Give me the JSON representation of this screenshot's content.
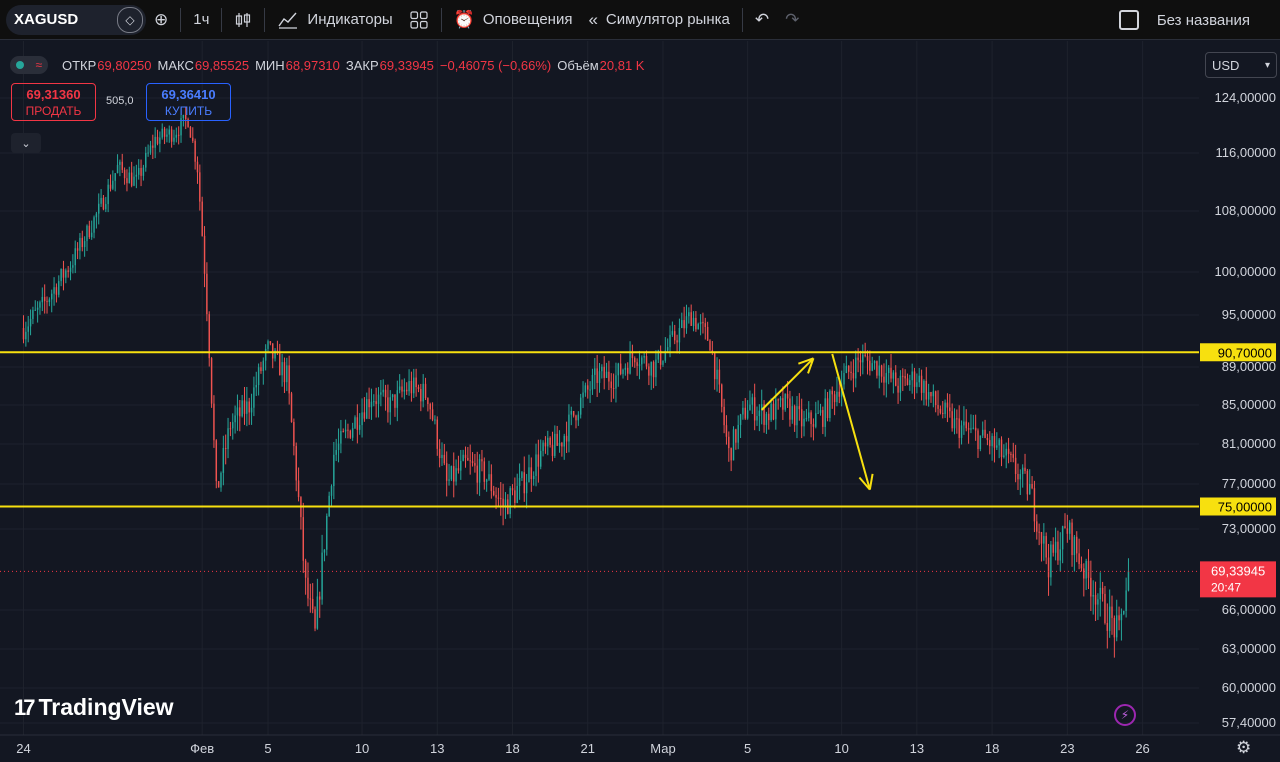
{
  "toolbar": {
    "symbol": "XAGUSD",
    "interval": "1ч",
    "indicators_label": "Индикаторы",
    "alerts_label": "Оповещения",
    "replay_label": "Симулятор рынка",
    "layout_name": "Без названия",
    "icons": [
      "gem-icon",
      "plus-circle-icon",
      "candles-icon",
      "indicators-icon",
      "grid-icon",
      "alarm-icon",
      "rewind-icon",
      "undo-icon",
      "redo-icon",
      "layout-icon"
    ]
  },
  "legend": {
    "open_label": "ОТКР",
    "open": "69,80250",
    "high_label": "МАКС",
    "high": "69,85525",
    "low_label": "МИН",
    "low": "68,97310",
    "close_label": "ЗАКР",
    "close": "69,33945",
    "change": "−0,46075 (−0,66%)",
    "volume_label": "Объём",
    "volume": "20,81 K"
  },
  "trade": {
    "sell_price": "69,31360",
    "sell_label": "ПРОДАТЬ",
    "spread": "505,0",
    "buy_price": "69,36410",
    "buy_label": "КУПИТЬ"
  },
  "currency": "USD",
  "branding": {
    "logo_text": "TradingView"
  },
  "chart_data": {
    "type": "candlestick",
    "symbol": "XAGUSD",
    "interval": "1ч",
    "colors": {
      "up": "#26a69a",
      "down": "#ef5350",
      "background": "#131722",
      "grid": "#1e222d",
      "line": "#f7e00f",
      "arrow": "#f7e00f",
      "last_price": "#f23645"
    },
    "x_ticks": [
      "24",
      "Фев",
      "5",
      "10",
      "13",
      "18",
      "21",
      "Мар",
      "5",
      "10",
      "13",
      "18",
      "23",
      "26"
    ],
    "x_tick_index": [
      0,
      19,
      26,
      36,
      44,
      52,
      60,
      68,
      77,
      87,
      95,
      103,
      111,
      119
    ],
    "y_ticks": [
      {
        "label": "124,00000",
        "value": 124
      },
      {
        "label": "116,00000",
        "value": 116
      },
      {
        "label": "108,00000",
        "value": 108
      },
      {
        "label": "100,00000",
        "value": 100
      },
      {
        "label": "95,00000",
        "value": 95
      },
      {
        "label": "89,00000",
        "value": 89
      },
      {
        "label": "85,00000",
        "value": 85
      },
      {
        "label": "81,00000",
        "value": 81
      },
      {
        "label": "77,00000",
        "value": 77
      },
      {
        "label": "73,00000",
        "value": 73
      },
      {
        "label": "66,00000",
        "value": 66
      },
      {
        "label": "63,00000",
        "value": 63
      },
      {
        "label": "60,00000",
        "value": 60
      },
      {
        "label": "57,40000",
        "value": 57.4
      }
    ],
    "horizontal_lines": [
      {
        "label": "90,70000",
        "value": 90.7
      },
      {
        "label": "75,00000",
        "value": 75.0
      }
    ],
    "last_price": {
      "label": "69,33945",
      "value": 69.33945,
      "countdown": "20:47"
    },
    "arrows": [
      {
        "from": [
          78.5,
          84.5
        ],
        "to": [
          84,
          90.0
        ]
      },
      {
        "from": [
          86,
          90.5
        ],
        "to": [
          90,
          76.5
        ]
      }
    ],
    "x_range": [
      -2.5,
      125
    ],
    "key_prices": [
      [
        0,
        93.5
      ],
      [
        2,
        96
      ],
      [
        5,
        101
      ],
      [
        8,
        108
      ],
      [
        10,
        114
      ],
      [
        12,
        112
      ],
      [
        14,
        118
      ],
      [
        16,
        119
      ],
      [
        17.5,
        121
      ],
      [
        18.5,
        114
      ],
      [
        19.5,
        96
      ],
      [
        20.5,
        76
      ],
      [
        22,
        83
      ],
      [
        24,
        85
      ],
      [
        26,
        91
      ],
      [
        28,
        88
      ],
      [
        30,
        68
      ],
      [
        31,
        64
      ],
      [
        33,
        80
      ],
      [
        35,
        83
      ],
      [
        37,
        86
      ],
      [
        39,
        85
      ],
      [
        41,
        87
      ],
      [
        43,
        86
      ],
      [
        45,
        77
      ],
      [
        47,
        79
      ],
      [
        49,
        78
      ],
      [
        51,
        75
      ],
      [
        53,
        77
      ],
      [
        55,
        80
      ],
      [
        57,
        81
      ],
      [
        59,
        85
      ],
      [
        61,
        88
      ],
      [
        63,
        88
      ],
      [
        65,
        90.5
      ],
      [
        67,
        89
      ],
      [
        69,
        92
      ],
      [
        71,
        95
      ],
      [
        73,
        92
      ],
      [
        75,
        80
      ],
      [
        77,
        85
      ],
      [
        79,
        84
      ],
      [
        81,
        85
      ],
      [
        83,
        83
      ],
      [
        85,
        84
      ],
      [
        87,
        87.5
      ],
      [
        89,
        90
      ],
      [
        91,
        89
      ],
      [
        93,
        87
      ],
      [
        95,
        88
      ],
      [
        97,
        85
      ],
      [
        99,
        83
      ],
      [
        101,
        82
      ],
      [
        103,
        81
      ],
      [
        105,
        79
      ],
      [
        107,
        76.5
      ],
      [
        109,
        70
      ],
      [
        111,
        73
      ],
      [
        113,
        69
      ],
      [
        115,
        66
      ],
      [
        116.5,
        64
      ],
      [
        117.5,
        69.3
      ]
    ]
  }
}
